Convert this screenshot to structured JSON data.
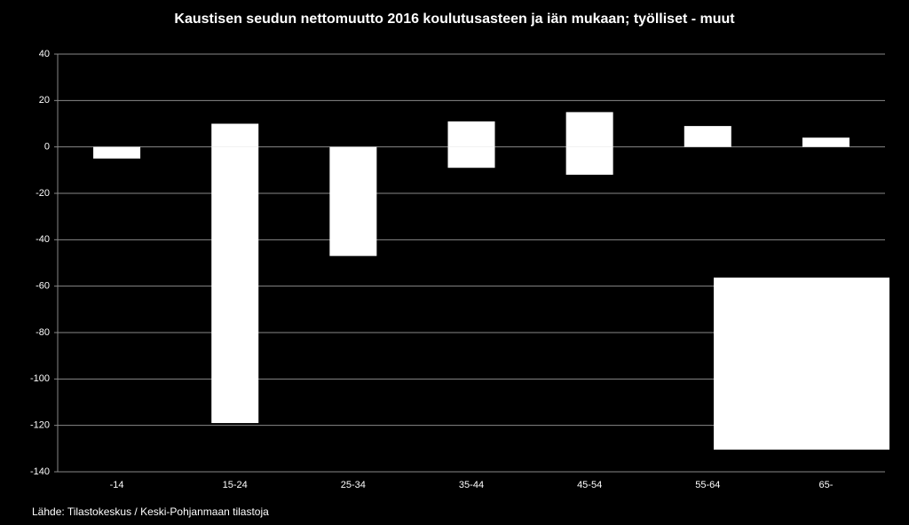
{
  "chart_data": {
    "type": "bar",
    "stacked": true,
    "title": "Kaustisen seudun nettomuutto 2016 koulutusasteen ja iän mukaan; työlliset - muut",
    "note": "Lähde: Tilastokeskus / Keski-Pohjanmaan tilastoja",
    "categories": [
      "-14",
      "15-24",
      "25-34",
      "35-44",
      "45-54",
      "55-64",
      "65-"
    ],
    "series": [
      {
        "color": "#ffffff",
        "values": [
          0,
          10,
          0,
          11,
          15,
          9,
          4
        ]
      },
      {
        "color": "#ffffff",
        "values": [
          -5,
          -119,
          -47,
          -9,
          -12,
          0,
          0
        ]
      }
    ],
    "ylim": [
      -140,
      40
    ],
    "yticks": [
      -140,
      -120,
      -100,
      -80,
      -60,
      -40,
      -20,
      0,
      20,
      40
    ],
    "grid": true
  }
}
